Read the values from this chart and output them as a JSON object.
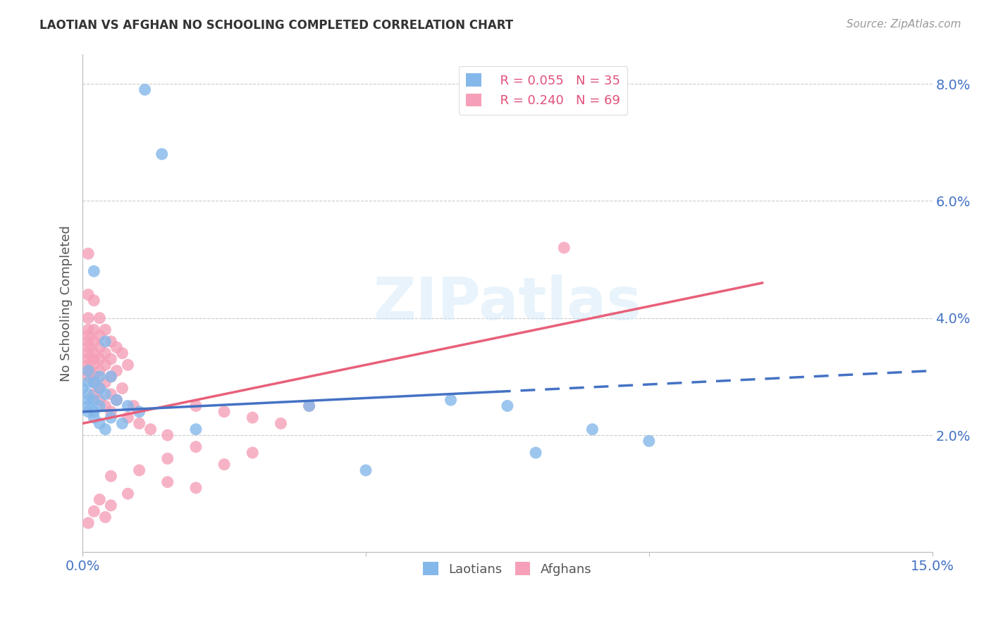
{
  "title": "LAOTIAN VS AFGHAN NO SCHOOLING COMPLETED CORRELATION CHART",
  "source": "Source: ZipAtlas.com",
  "ylabel": "No Schooling Completed",
  "xmin": 0.0,
  "xmax": 0.15,
  "ymin": 0.0,
  "ymax": 0.085,
  "yticks": [
    0.0,
    0.02,
    0.04,
    0.06,
    0.08
  ],
  "ytick_labels": [
    "",
    "2.0%",
    "4.0%",
    "6.0%",
    "8.0%"
  ],
  "xticks": [
    0.0,
    0.05,
    0.1,
    0.15
  ],
  "xtick_labels": [
    "0.0%",
    "",
    "",
    "15.0%"
  ],
  "grid_color": "#cccccc",
  "background_color": "#ffffff",
  "watermark_text": "ZIPatlas",
  "legend_r1": "R = 0.055",
  "legend_n1": "N = 35",
  "legend_r2": "R = 0.240",
  "legend_n2": "N = 69",
  "laotian_color": "#85b8ea",
  "afghan_color": "#f5a0b8",
  "laotian_line_color": "#4472c4",
  "afghan_line_color": "#e8607a",
  "lao_line_x": [
    0.0,
    0.15
  ],
  "lao_line_y": [
    0.024,
    0.031
  ],
  "lao_line_solid_end": 0.073,
  "afg_line_x": [
    0.0,
    0.12
  ],
  "afg_line_y": [
    0.022,
    0.046
  ],
  "laotian_points": [
    [
      0.011,
      0.079
    ],
    [
      0.014,
      0.068
    ],
    [
      0.002,
      0.048
    ],
    [
      0.004,
      0.036
    ],
    [
      0.001,
      0.031
    ],
    [
      0.003,
      0.03
    ],
    [
      0.005,
      0.03
    ],
    [
      0.001,
      0.029
    ],
    [
      0.002,
      0.029
    ],
    [
      0.0,
      0.028
    ],
    [
      0.003,
      0.028
    ],
    [
      0.001,
      0.027
    ],
    [
      0.004,
      0.027
    ],
    [
      0.001,
      0.026
    ],
    [
      0.002,
      0.026
    ],
    [
      0.006,
      0.026
    ],
    [
      0.001,
      0.025
    ],
    [
      0.003,
      0.025
    ],
    [
      0.008,
      0.025
    ],
    [
      0.001,
      0.024
    ],
    [
      0.002,
      0.024
    ],
    [
      0.01,
      0.024
    ],
    [
      0.002,
      0.023
    ],
    [
      0.005,
      0.023
    ],
    [
      0.003,
      0.022
    ],
    [
      0.007,
      0.022
    ],
    [
      0.004,
      0.021
    ],
    [
      0.02,
      0.021
    ],
    [
      0.04,
      0.025
    ],
    [
      0.065,
      0.026
    ],
    [
      0.075,
      0.025
    ],
    [
      0.09,
      0.021
    ],
    [
      0.1,
      0.019
    ],
    [
      0.08,
      0.017
    ],
    [
      0.05,
      0.014
    ]
  ],
  "afghan_points": [
    [
      0.001,
      0.051
    ],
    [
      0.001,
      0.044
    ],
    [
      0.002,
      0.043
    ],
    [
      0.001,
      0.04
    ],
    [
      0.003,
      0.04
    ],
    [
      0.001,
      0.038
    ],
    [
      0.002,
      0.038
    ],
    [
      0.004,
      0.038
    ],
    [
      0.001,
      0.037
    ],
    [
      0.003,
      0.037
    ],
    [
      0.001,
      0.036
    ],
    [
      0.002,
      0.036
    ],
    [
      0.005,
      0.036
    ],
    [
      0.001,
      0.035
    ],
    [
      0.003,
      0.035
    ],
    [
      0.006,
      0.035
    ],
    [
      0.001,
      0.034
    ],
    [
      0.002,
      0.034
    ],
    [
      0.004,
      0.034
    ],
    [
      0.007,
      0.034
    ],
    [
      0.001,
      0.033
    ],
    [
      0.002,
      0.033
    ],
    [
      0.003,
      0.033
    ],
    [
      0.005,
      0.033
    ],
    [
      0.001,
      0.032
    ],
    [
      0.002,
      0.032
    ],
    [
      0.004,
      0.032
    ],
    [
      0.008,
      0.032
    ],
    [
      0.001,
      0.031
    ],
    [
      0.003,
      0.031
    ],
    [
      0.006,
      0.031
    ],
    [
      0.001,
      0.03
    ],
    [
      0.002,
      0.03
    ],
    [
      0.005,
      0.03
    ],
    [
      0.002,
      0.029
    ],
    [
      0.004,
      0.029
    ],
    [
      0.003,
      0.028
    ],
    [
      0.007,
      0.028
    ],
    [
      0.002,
      0.027
    ],
    [
      0.005,
      0.027
    ],
    [
      0.003,
      0.026
    ],
    [
      0.006,
      0.026
    ],
    [
      0.004,
      0.025
    ],
    [
      0.009,
      0.025
    ],
    [
      0.005,
      0.024
    ],
    [
      0.008,
      0.023
    ],
    [
      0.01,
      0.022
    ],
    [
      0.012,
      0.021
    ],
    [
      0.015,
      0.02
    ],
    [
      0.02,
      0.025
    ],
    [
      0.025,
      0.024
    ],
    [
      0.03,
      0.023
    ],
    [
      0.035,
      0.022
    ],
    [
      0.04,
      0.025
    ],
    [
      0.085,
      0.052
    ],
    [
      0.02,
      0.018
    ],
    [
      0.03,
      0.017
    ],
    [
      0.015,
      0.016
    ],
    [
      0.025,
      0.015
    ],
    [
      0.01,
      0.014
    ],
    [
      0.005,
      0.013
    ],
    [
      0.015,
      0.012
    ],
    [
      0.02,
      0.011
    ],
    [
      0.008,
      0.01
    ],
    [
      0.003,
      0.009
    ],
    [
      0.005,
      0.008
    ],
    [
      0.002,
      0.007
    ],
    [
      0.004,
      0.006
    ],
    [
      0.001,
      0.005
    ]
  ]
}
